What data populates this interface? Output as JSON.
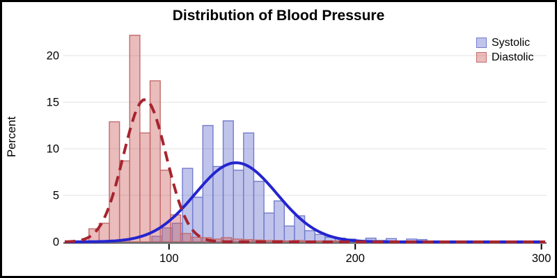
{
  "window": {
    "background": "#ffffff",
    "border_color": "#000000"
  },
  "chart_data": {
    "type": "histogram",
    "title": "Distribution of Blood Pressure",
    "ylabel": "Percent",
    "xlabel": "",
    "x_ticks": [
      100,
      200,
      300
    ],
    "y_ticks": [
      0,
      5,
      10,
      15,
      20
    ],
    "xlim": [
      44,
      302
    ],
    "ylim": [
      0,
      22.4
    ],
    "grid": "horizontal",
    "grid_color": "#ebebeb",
    "axis_color": "#6b6b6b",
    "tick_color": "#000000",
    "legend_position": "top-right-inside",
    "series": [
      {
        "name": "Systolic",
        "type": "histogram",
        "bin_start": 90.8,
        "bin_width": 5.47,
        "percents": [
          0.6,
          1.5,
          2.0,
          7.9,
          4.8,
          12.5,
          8.1,
          13.0,
          7.7,
          11.7,
          6.5,
          3.1,
          4.4,
          1.7,
          2.8,
          1.2,
          0.8,
          0.5,
          0.4,
          0.3,
          0,
          0.4,
          0.15,
          0.35,
          0,
          0.3,
          0.25
        ],
        "fill": "rgba(105,115,205,0.42)",
        "border": "#727bce",
        "density": {
          "mean": 136,
          "sd": 22,
          "peak_percent": 8.5,
          "line_color": "#2424cf",
          "line_style": "solid",
          "line_width": 4
        }
      },
      {
        "name": "Diastolic",
        "type": "histogram",
        "bin_start": 57.0,
        "bin_width": 5.47,
        "percents": [
          1.4,
          2.0,
          12.9,
          8.7,
          22.2,
          11.7,
          17.3,
          7.7,
          2.9,
          0.9,
          0.5,
          0.45,
          0.3,
          0.45,
          0.3,
          0.25,
          0.2,
          0.15,
          0.15,
          0.1,
          0.15,
          0.1,
          0.1,
          0.05,
          0.1
        ],
        "fill": "rgba(205,95,95,0.42)",
        "border": "#c36a6c",
        "density": {
          "mean": 87,
          "sd": 11.5,
          "peak_percent": 15.3,
          "line_color": "#a6242f",
          "line_style": "dashed",
          "line_width": 4
        }
      }
    ]
  }
}
